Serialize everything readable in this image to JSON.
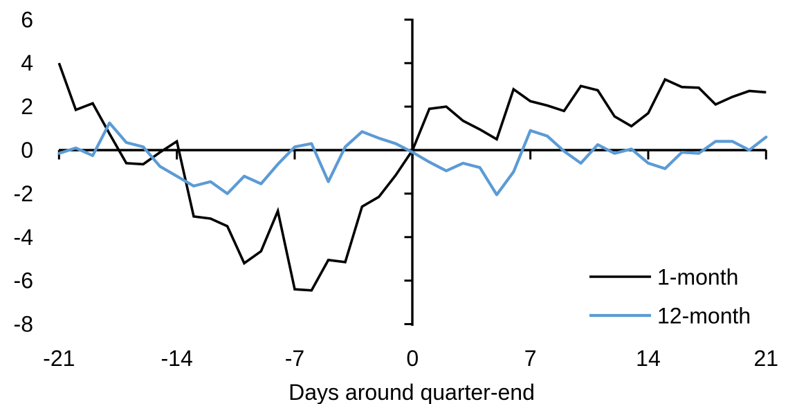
{
  "chart_data": {
    "type": "line",
    "title": "",
    "xlabel": "Days around quarter-end",
    "ylabel": "",
    "x": [
      -21,
      -20,
      -19,
      -18,
      -17,
      -16,
      -15,
      -14,
      -13,
      -12,
      -11,
      -10,
      -9,
      -8,
      -7,
      -6,
      -5,
      -4,
      -3,
      -2,
      -1,
      0,
      1,
      2,
      3,
      4,
      5,
      6,
      7,
      8,
      9,
      10,
      11,
      12,
      13,
      14,
      15,
      16,
      17,
      18,
      19,
      20,
      21
    ],
    "series": [
      {
        "name": "1-month",
        "color": "#000000",
        "values": [
          4.0,
          1.85,
          2.15,
          0.75,
          -0.6,
          -0.65,
          -0.1,
          0.4,
          -3.05,
          -3.15,
          -3.5,
          -5.2,
          -4.65,
          -2.8,
          -6.4,
          -6.45,
          -5.05,
          -5.15,
          -2.6,
          -2.15,
          -1.15,
          0.0,
          1.9,
          2.0,
          1.35,
          0.95,
          0.5,
          2.8,
          2.25,
          2.05,
          1.8,
          2.95,
          2.75,
          1.55,
          1.1,
          1.7,
          3.25,
          2.9,
          2.87,
          2.1,
          2.45,
          2.72,
          2.66
        ]
      },
      {
        "name": "12-month",
        "color": "#5B9BD5",
        "values": [
          -0.15,
          0.1,
          -0.25,
          1.25,
          0.35,
          0.15,
          -0.75,
          -1.2,
          -1.65,
          -1.45,
          -2.0,
          -1.2,
          -1.55,
          -0.65,
          0.15,
          0.3,
          -1.45,
          0.15,
          0.85,
          0.55,
          0.3,
          -0.1,
          -0.55,
          -0.95,
          -0.6,
          -0.8,
          -2.05,
          -1.0,
          0.9,
          0.65,
          -0.05,
          -0.6,
          0.25,
          -0.15,
          0.05,
          -0.6,
          -0.85,
          -0.1,
          -0.15,
          0.4,
          0.4,
          0.0,
          0.6
        ]
      }
    ],
    "xlim": [
      -21,
      21
    ],
    "ylim": [
      -8,
      6
    ],
    "x_ticks": [
      -21,
      -14,
      -7,
      0,
      7,
      14,
      21
    ],
    "y_ticks": [
      6,
      4,
      2,
      0,
      -2,
      -4,
      -6,
      -8
    ],
    "grid": false,
    "legend_position": "lower-right",
    "axis_color": "#000000"
  }
}
